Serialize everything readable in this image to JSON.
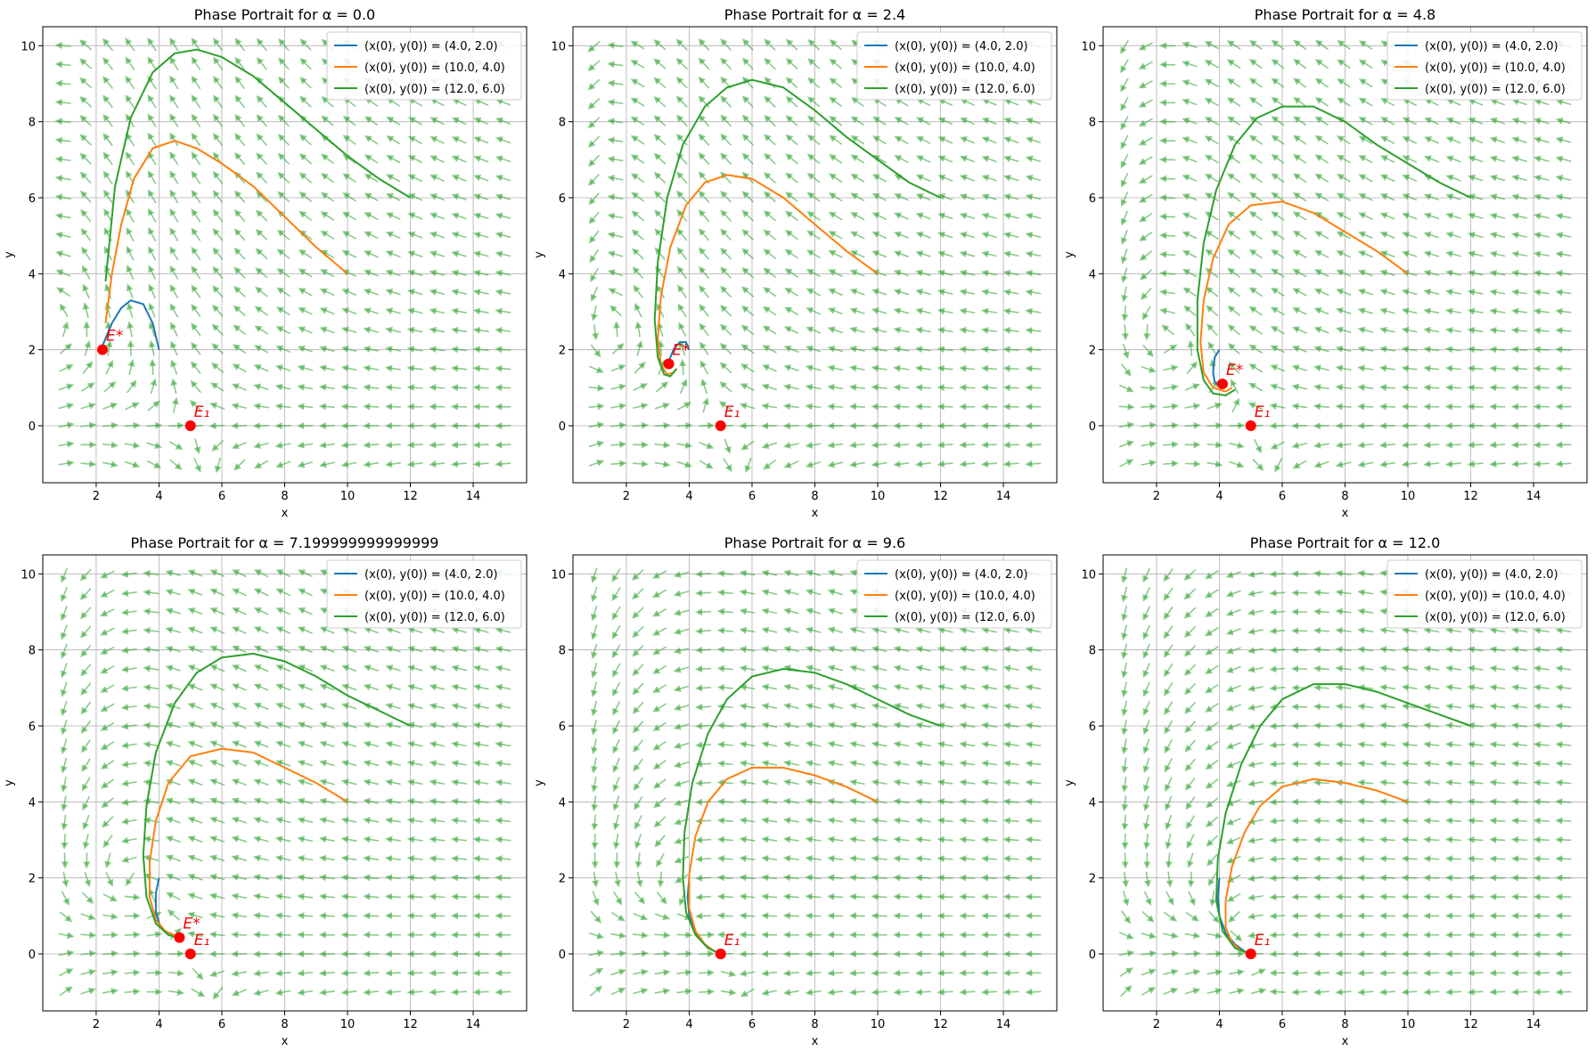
{
  "figure": {
    "subplots": 6
  },
  "colors": {
    "series1": "#1f77b4",
    "series2": "#ff7f0e",
    "series3": "#2ca02c",
    "field": "#2ca02c",
    "equilibrium": "#ff0000",
    "grid": "#b0b0b0"
  },
  "chart_data": [
    {
      "type": "line",
      "title": "Phase Portrait for α = 0.0",
      "xlabel": "x",
      "ylabel": "y",
      "xlim": [
        0.3,
        15.7
      ],
      "ylim": [
        -1.5,
        10.5
      ],
      "xticks": [
        2,
        4,
        6,
        8,
        10,
        12,
        14
      ],
      "yticks": [
        0,
        2,
        4,
        6,
        8,
        10
      ],
      "xtick_labels": [
        "2",
        "4",
        "6",
        "8",
        "10",
        "12",
        "14"
      ],
      "ytick_labels": [
        "0",
        "2",
        "4",
        "6",
        "8",
        "10"
      ],
      "grid": true,
      "legend_position": "top-right",
      "alpha": 0.0,
      "series": [
        {
          "name": "(x(0), y(0)) = (4.0, 2.0)",
          "x": [
            4.0,
            3.8,
            3.5,
            3.1,
            2.8,
            2.5,
            2.3,
            2.2
          ],
          "y": [
            2.0,
            2.7,
            3.2,
            3.3,
            3.1,
            2.7,
            2.3,
            2.1
          ]
        },
        {
          "name": "(x(0), y(0)) = (10.0, 4.0)",
          "x": [
            10.0,
            9.0,
            8.0,
            7.0,
            6.0,
            5.2,
            4.5,
            3.8,
            3.2,
            2.8,
            2.5,
            2.3
          ],
          "y": [
            4.0,
            4.7,
            5.5,
            6.3,
            6.9,
            7.3,
            7.5,
            7.3,
            6.5,
            5.3,
            4.0,
            2.7
          ]
        },
        {
          "name": "(x(0), y(0)) = (12.0, 6.0)",
          "x": [
            12.0,
            11.0,
            10.0,
            9.0,
            8.0,
            7.0,
            6.0,
            5.2,
            4.5,
            3.8,
            3.1,
            2.6,
            2.3
          ],
          "y": [
            6.0,
            6.5,
            7.1,
            7.8,
            8.5,
            9.2,
            9.7,
            9.9,
            9.8,
            9.3,
            8.1,
            6.3,
            3.8
          ]
        }
      ],
      "equilibria": [
        {
          "label": "E*",
          "x": 2.2,
          "y": 2.0
        },
        {
          "label": "E₁",
          "x": 5.0,
          "y": 0.0
        }
      ]
    },
    {
      "type": "line",
      "title": "Phase Portrait for α = 2.4",
      "xlabel": "x",
      "ylabel": "y",
      "xlim": [
        0.3,
        15.7
      ],
      "ylim": [
        -1.5,
        10.5
      ],
      "xticks": [
        2,
        4,
        6,
        8,
        10,
        12,
        14
      ],
      "yticks": [
        0,
        2,
        4,
        6,
        8,
        10
      ],
      "xtick_labels": [
        "2",
        "4",
        "6",
        "8",
        "10",
        "12",
        "14"
      ],
      "ytick_labels": [
        "0",
        "2",
        "4",
        "6",
        "8",
        "10"
      ],
      "grid": true,
      "legend_position": "top-right",
      "alpha": 2.4,
      "series": [
        {
          "name": "(x(0), y(0)) = (4.0, 2.0)",
          "x": [
            4.0,
            3.9,
            3.7,
            3.5,
            3.4,
            3.3,
            3.35,
            3.4
          ],
          "y": [
            2.0,
            2.2,
            2.2,
            2.0,
            1.8,
            1.6,
            1.55,
            1.6
          ]
        },
        {
          "name": "(x(0), y(0)) = (10.0, 4.0)",
          "x": [
            10.0,
            9.0,
            8.0,
            7.0,
            6.0,
            5.2,
            4.5,
            3.9,
            3.4,
            3.1,
            3.0,
            3.1,
            3.3,
            3.5,
            3.6
          ],
          "y": [
            4.0,
            4.6,
            5.3,
            6.0,
            6.5,
            6.6,
            6.4,
            5.8,
            4.7,
            3.4,
            2.3,
            1.6,
            1.35,
            1.4,
            1.5
          ]
        },
        {
          "name": "(x(0), y(0)) = (12.0, 6.0)",
          "x": [
            12.0,
            11.0,
            10.0,
            9.0,
            8.0,
            7.0,
            6.0,
            5.2,
            4.5,
            3.8,
            3.3,
            3.0,
            2.9,
            3.0,
            3.2,
            3.4,
            3.6
          ],
          "y": [
            6.0,
            6.4,
            7.0,
            7.6,
            8.3,
            8.9,
            9.1,
            8.9,
            8.4,
            7.4,
            6.0,
            4.3,
            2.8,
            1.8,
            1.35,
            1.3,
            1.5
          ]
        }
      ],
      "equilibria": [
        {
          "label": "E*",
          "x": 3.35,
          "y": 1.63
        },
        {
          "label": "E₁",
          "x": 5.0,
          "y": 0.0
        }
      ]
    },
    {
      "type": "line",
      "title": "Phase Portrait for α = 4.8",
      "xlabel": "x",
      "ylabel": "y",
      "xlim": [
        0.3,
        15.7
      ],
      "ylim": [
        -1.5,
        10.5
      ],
      "xticks": [
        2,
        4,
        6,
        8,
        10,
        12,
        14
      ],
      "yticks": [
        0,
        2,
        4,
        6,
        8,
        10
      ],
      "xtick_labels": [
        "2",
        "4",
        "6",
        "8",
        "10",
        "12",
        "14"
      ],
      "ytick_labels": [
        "0",
        "2",
        "4",
        "6",
        "8",
        "10"
      ],
      "grid": true,
      "legend_position": "top-right",
      "alpha": 4.8,
      "series": [
        {
          "name": "(x(0), y(0)) = (4.0, 2.0)",
          "x": [
            4.0,
            3.85,
            3.8,
            3.85,
            4.0,
            4.1
          ],
          "y": [
            2.0,
            1.8,
            1.4,
            1.15,
            1.05,
            1.1
          ]
        },
        {
          "name": "(x(0), y(0)) = (10.0, 4.0)",
          "x": [
            10.0,
            9.0,
            8.0,
            7.0,
            6.0,
            5.0,
            4.3,
            3.8,
            3.5,
            3.4,
            3.5,
            3.8,
            4.2,
            4.4
          ],
          "y": [
            4.0,
            4.6,
            5.1,
            5.6,
            5.9,
            5.8,
            5.3,
            4.4,
            3.3,
            2.2,
            1.4,
            1.0,
            0.9,
            1.0
          ]
        },
        {
          "name": "(x(0), y(0)) = (12.0, 6.0)",
          "x": [
            12.0,
            11.0,
            10.0,
            9.0,
            8.0,
            7.0,
            6.0,
            5.2,
            4.5,
            3.9,
            3.5,
            3.3,
            3.3,
            3.5,
            3.8,
            4.2,
            4.5
          ],
          "y": [
            6.0,
            6.4,
            6.9,
            7.4,
            8.0,
            8.4,
            8.4,
            8.1,
            7.4,
            6.2,
            4.8,
            3.3,
            2.0,
            1.2,
            0.85,
            0.8,
            0.95
          ]
        }
      ],
      "equilibria": [
        {
          "label": "E*",
          "x": 4.1,
          "y": 1.1
        },
        {
          "label": "E₁",
          "x": 5.0,
          "y": 0.0
        }
      ]
    },
    {
      "type": "line",
      "title": "Phase Portrait for α = 7.199999999999999",
      "xlabel": "x",
      "ylabel": "y",
      "xlim": [
        0.3,
        15.7
      ],
      "ylim": [
        -1.5,
        10.5
      ],
      "xticks": [
        2,
        4,
        6,
        8,
        10,
        12,
        14
      ],
      "yticks": [
        0,
        2,
        4,
        6,
        8,
        10
      ],
      "xtick_labels": [
        "2",
        "4",
        "6",
        "8",
        "10",
        "12",
        "14"
      ],
      "ytick_labels": [
        "0",
        "2",
        "4",
        "6",
        "8",
        "10"
      ],
      "grid": true,
      "legend_position": "top-right",
      "alpha": 7.2,
      "series": [
        {
          "name": "(x(0), y(0)) = (4.0, 2.0)",
          "x": [
            4.0,
            3.9,
            3.9,
            4.05,
            4.3,
            4.6
          ],
          "y": [
            2.0,
            1.6,
            1.1,
            0.7,
            0.5,
            0.45
          ]
        },
        {
          "name": "(x(0), y(0)) = (10.0, 4.0)",
          "x": [
            10.0,
            9.0,
            8.0,
            7.0,
            6.0,
            5.0,
            4.3,
            3.9,
            3.7,
            3.7,
            3.9,
            4.2,
            4.6
          ],
          "y": [
            4.0,
            4.5,
            4.9,
            5.3,
            5.4,
            5.2,
            4.5,
            3.5,
            2.4,
            1.5,
            0.9,
            0.6,
            0.45
          ]
        },
        {
          "name": "(x(0), y(0)) = (12.0, 6.0)",
          "x": [
            12.0,
            11.0,
            10.0,
            9.0,
            8.0,
            7.0,
            6.0,
            5.2,
            4.5,
            3.9,
            3.6,
            3.5,
            3.6,
            3.9,
            4.3,
            4.6
          ],
          "y": [
            6.0,
            6.4,
            6.8,
            7.3,
            7.7,
            7.9,
            7.8,
            7.4,
            6.6,
            5.3,
            3.9,
            2.6,
            1.5,
            0.8,
            0.5,
            0.42
          ]
        }
      ],
      "equilibria": [
        {
          "label": "E*",
          "x": 4.65,
          "y": 0.43
        },
        {
          "label": "E₁",
          "x": 5.0,
          "y": 0.0
        }
      ]
    },
    {
      "type": "line",
      "title": "Phase Portrait for α = 9.6",
      "xlabel": "x",
      "ylabel": "y",
      "xlim": [
        0.3,
        15.7
      ],
      "ylim": [
        -1.5,
        10.5
      ],
      "xticks": [
        2,
        4,
        6,
        8,
        10,
        12,
        14
      ],
      "yticks": [
        0,
        2,
        4,
        6,
        8,
        10
      ],
      "xtick_labels": [
        "2",
        "4",
        "6",
        "8",
        "10",
        "12",
        "14"
      ],
      "ytick_labels": [
        "0",
        "2",
        "4",
        "6",
        "8",
        "10"
      ],
      "grid": true,
      "legend_position": "top-right",
      "alpha": 9.6,
      "series": [
        {
          "name": "(x(0), y(0)) = (4.0, 2.0)",
          "x": [
            4.0,
            3.95,
            4.0,
            4.2,
            4.5,
            4.8,
            5.0
          ],
          "y": [
            2.0,
            1.5,
            1.0,
            0.55,
            0.25,
            0.07,
            0.0
          ]
        },
        {
          "name": "(x(0), y(0)) = (10.0, 4.0)",
          "x": [
            10.0,
            9.0,
            8.0,
            7.0,
            6.0,
            5.2,
            4.6,
            4.2,
            4.0,
            4.0,
            4.2,
            4.5,
            4.8,
            5.0
          ],
          "y": [
            4.0,
            4.4,
            4.7,
            4.9,
            4.9,
            4.6,
            4.0,
            3.1,
            2.1,
            1.2,
            0.6,
            0.25,
            0.07,
            0.0
          ]
        },
        {
          "name": "(x(0), y(0)) = (12.0, 6.0)",
          "x": [
            12.0,
            11.0,
            10.0,
            9.0,
            8.0,
            7.0,
            6.0,
            5.2,
            4.6,
            4.1,
            3.85,
            3.8,
            3.9,
            4.2,
            4.6,
            5.0
          ],
          "y": [
            6.0,
            6.3,
            6.7,
            7.1,
            7.4,
            7.5,
            7.3,
            6.7,
            5.8,
            4.5,
            3.2,
            2.0,
            1.1,
            0.5,
            0.15,
            0.0
          ]
        }
      ],
      "equilibria": [
        {
          "label": "E₁",
          "x": 5.0,
          "y": 0.0
        }
      ]
    },
    {
      "type": "line",
      "title": "Phase Portrait for α = 12.0",
      "xlabel": "x",
      "ylabel": "y",
      "xlim": [
        0.3,
        15.7
      ],
      "ylim": [
        -1.5,
        10.5
      ],
      "xticks": [
        2,
        4,
        6,
        8,
        10,
        12,
        14
      ],
      "yticks": [
        0,
        2,
        4,
        6,
        8,
        10
      ],
      "xtick_labels": [
        "2",
        "4",
        "6",
        "8",
        "10",
        "12",
        "14"
      ],
      "ytick_labels": [
        "0",
        "2",
        "4",
        "6",
        "8",
        "10"
      ],
      "grid": true,
      "legend_position": "top-right",
      "alpha": 12.0,
      "series": [
        {
          "name": "(x(0), y(0)) = (4.0, 2.0)",
          "x": [
            4.0,
            3.95,
            4.0,
            4.2,
            4.5,
            4.8,
            5.0
          ],
          "y": [
            2.0,
            1.5,
            1.0,
            0.55,
            0.25,
            0.07,
            0.0
          ]
        },
        {
          "name": "(x(0), y(0)) = (10.0, 4.0)",
          "x": [
            10.0,
            9.0,
            8.0,
            7.0,
            6.0,
            5.3,
            4.8,
            4.4,
            4.2,
            4.2,
            4.4,
            4.7,
            5.0
          ],
          "y": [
            4.0,
            4.3,
            4.5,
            4.6,
            4.4,
            3.9,
            3.2,
            2.3,
            1.4,
            0.7,
            0.3,
            0.08,
            0.0
          ]
        },
        {
          "name": "(x(0), y(0)) = (12.0, 6.0)",
          "x": [
            12.0,
            11.0,
            10.0,
            9.0,
            8.0,
            7.0,
            6.0,
            5.3,
            4.7,
            4.2,
            3.95,
            3.9,
            4.1,
            4.5,
            5.0
          ],
          "y": [
            6.0,
            6.3,
            6.6,
            6.9,
            7.1,
            7.1,
            6.7,
            6.0,
            5.0,
            3.7,
            2.5,
            1.4,
            0.6,
            0.15,
            0.0
          ]
        }
      ],
      "equilibria": [
        {
          "label": "E₁",
          "x": 5.0,
          "y": 0.0
        }
      ]
    }
  ]
}
